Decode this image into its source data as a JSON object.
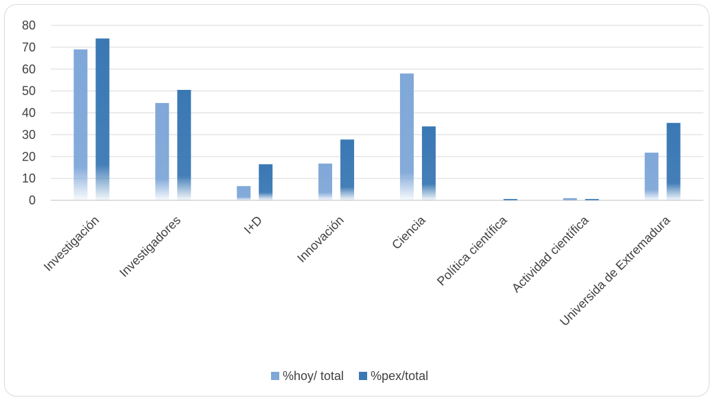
{
  "chart_data": {
    "type": "bar",
    "categories": [
      "Investigación",
      "Investigadores",
      "I+D",
      "Innovación",
      "Ciencia",
      "Política científica",
      "Actividad científica",
      "Universida de Extremadura"
    ],
    "series": [
      {
        "name": "%hoy/ total",
        "values": [
          69,
          44.5,
          6.5,
          16.8,
          58,
          0,
          1,
          21.8
        ],
        "color": "#7fa7d8"
      },
      {
        "name": "%pex/total",
        "values": [
          74,
          50.5,
          16.5,
          27.8,
          33.8,
          0.6,
          0.6,
          35.4
        ],
        "color": "#3a78b4"
      }
    ],
    "title": "",
    "xlabel": "",
    "ylabel": "",
    "ylim": [
      0,
      80
    ],
    "yticks": [
      0,
      10,
      20,
      30,
      40,
      50,
      60,
      70,
      80
    ],
    "grid": true,
    "legend": "bottom"
  }
}
